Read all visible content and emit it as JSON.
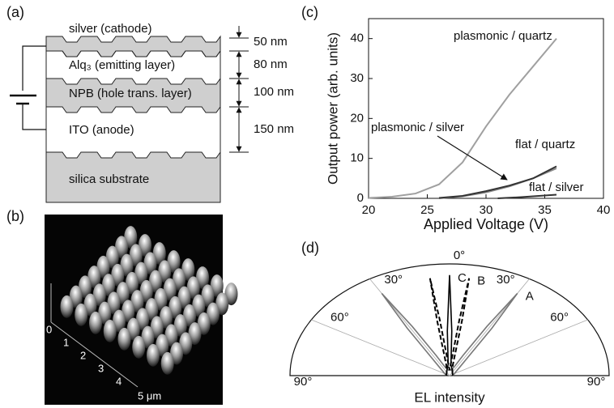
{
  "figure_a": {
    "label": "(a)",
    "layers": [
      "silver (cathode)",
      "Alq₃ (emitting layer)",
      "NPB (hole trans. layer)",
      "ITO (anode)",
      "silica substrate"
    ],
    "thicknesses": [
      "50 nm",
      "80 nm",
      "100 nm",
      "150 nm"
    ]
  },
  "figure_b": {
    "label": "(b)",
    "axis_labels": [
      "0",
      "1",
      "2",
      "3",
      "4",
      "5 μm"
    ]
  },
  "chart_data": [
    {
      "type": "line",
      "label": "(c)",
      "x_label": "Applied Voltage (V)",
      "y_label": "Output power (arb. units)",
      "xlim": [
        20,
        40
      ],
      "xticks": [
        20,
        25,
        30,
        35,
        40
      ],
      "ylim": [
        0,
        45
      ],
      "yticks": [
        0,
        10,
        20,
        30,
        40
      ],
      "series": [
        {
          "name": "plasmonic / quartz",
          "color": "#a0a0a0",
          "x": [
            20,
            22,
            24,
            26,
            28,
            30,
            32,
            34,
            36
          ],
          "values": [
            0.1,
            0.4,
            1.2,
            3.5,
            9,
            18,
            26,
            33,
            40
          ]
        },
        {
          "name": "plasmonic / silver",
          "color": "#8a8a8a",
          "x": [
            26,
            28,
            30,
            32,
            34,
            36
          ],
          "values": [
            0,
            0.5,
            1.5,
            3,
            5,
            7.5
          ]
        },
        {
          "name": "flat / quartz",
          "color": "#333333",
          "x": [
            26,
            28,
            30,
            32,
            34,
            36
          ],
          "values": [
            0.1,
            0.6,
            1.8,
            3.2,
            5,
            8
          ]
        },
        {
          "name": "flat / silver",
          "color": "#333333",
          "x": [
            31,
            33,
            36
          ],
          "values": [
            0,
            0.3,
            0.9
          ]
        }
      ]
    },
    {
      "type": "polar",
      "label": "(d)",
      "r_label": "EL intensity",
      "rlim": [
        0,
        1
      ],
      "thetaticks": [
        {
          "value": -90,
          "label": "90°"
        },
        {
          "value": -60,
          "label": "60°"
        },
        {
          "value": -30,
          "label": "30°"
        },
        {
          "value": 0,
          "label": "0°"
        },
        {
          "value": 30,
          "label": "30°"
        },
        {
          "value": 60,
          "label": "60°"
        },
        {
          "value": 90,
          "label": "90°"
        }
      ],
      "series": [
        {
          "name": "A",
          "color": "#777777",
          "style": "solid",
          "theta": [
            -90,
            -50,
            -40,
            -35,
            -32,
            -30,
            -28,
            -25,
            -20,
            -10,
            0,
            10,
            20,
            25,
            28,
            30,
            32,
            35,
            40,
            50,
            90
          ],
          "values": [
            0.02,
            0.05,
            0.1,
            0.2,
            0.5,
            0.85,
            0.5,
            0.2,
            0.08,
            0.05,
            0.05,
            0.05,
            0.08,
            0.2,
            0.5,
            0.85,
            0.5,
            0.2,
            0.1,
            0.05,
            0.02
          ]
        },
        {
          "name": "B",
          "color": "#000000",
          "style": "dashed",
          "theta": [
            -90,
            -20,
            -12,
            -9,
            -8,
            -7,
            -4,
            0,
            4,
            7,
            8,
            9,
            12,
            20,
            90
          ],
          "values": [
            0.02,
            0.05,
            0.1,
            0.5,
            0.88,
            0.5,
            0.1,
            0.05,
            0.1,
            0.5,
            0.88,
            0.5,
            0.1,
            0.05,
            0.02
          ]
        },
        {
          "name": "C",
          "color": "#000000",
          "style": "solid",
          "theta": [
            -90,
            -20,
            -5,
            -2,
            0,
            2,
            5,
            20,
            90
          ],
          "values": [
            0.02,
            0.05,
            0.1,
            0.4,
            0.9,
            0.4,
            0.1,
            0.05,
            0.02
          ]
        }
      ]
    }
  ]
}
